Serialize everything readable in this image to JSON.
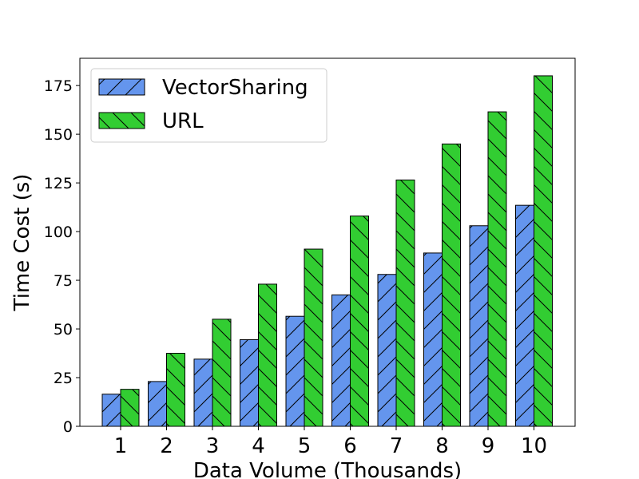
{
  "chart_data": {
    "type": "bar",
    "title": "",
    "xlabel": "Data Volume (Thousands)",
    "ylabel": "Time Cost (s)",
    "categories": [
      "1",
      "2",
      "3",
      "4",
      "5",
      "6",
      "7",
      "8",
      "9",
      "10"
    ],
    "yticks": [
      0,
      25,
      50,
      75,
      100,
      125,
      150,
      175
    ],
    "ylim": [
      0,
      189
    ],
    "grid": false,
    "legend_position": "top-left",
    "series": [
      {
        "name": "VectorSharing",
        "color": "#6495ED",
        "hatch": "forward-slash",
        "values": [
          16.5,
          23,
          34.5,
          44.5,
          56.5,
          67.5,
          78,
          89,
          103,
          113.5
        ]
      },
      {
        "name": "URL",
        "color": "#32CD32",
        "hatch": "back-slash",
        "values": [
          19,
          37.5,
          55,
          73,
          91,
          108,
          126.5,
          145,
          161.5,
          180
        ]
      }
    ]
  }
}
